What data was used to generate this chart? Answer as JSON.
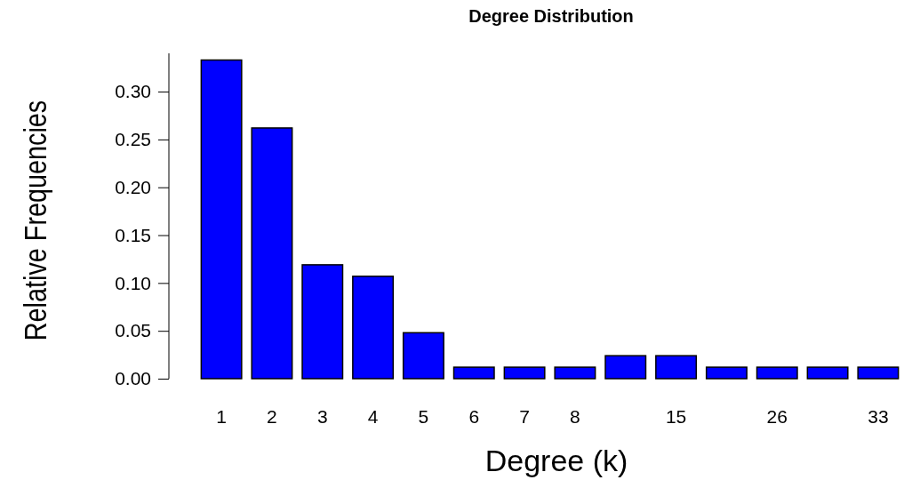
{
  "chart_data": {
    "type": "bar",
    "title": "Degree Distribution",
    "xlabel": "Degree (k)",
    "ylabel": "Relative Frequencies",
    "categories": [
      "1",
      "2",
      "3",
      "4",
      "5",
      "6",
      "7",
      "8",
      null,
      "15",
      null,
      "26",
      null,
      "33"
    ],
    "values": [
      0.333,
      0.262,
      0.119,
      0.107,
      0.048,
      0.012,
      0.012,
      0.012,
      0.024,
      0.024,
      0.012,
      0.012,
      0.012,
      0.012
    ],
    "color": "#0000ff",
    "ylim": [
      0,
      0.34
    ],
    "yticks": [
      {
        "value": 0,
        "label": "0.00"
      },
      {
        "value": 0.05,
        "label": "0.05"
      },
      {
        "value": 0.1,
        "label": "0.10"
      },
      {
        "value": 0.15,
        "label": "0.15"
      },
      {
        "value": 0.2,
        "label": "0.20"
      },
      {
        "value": 0.25,
        "label": "0.25"
      },
      {
        "value": 0.3,
        "label": "0.30"
      }
    ]
  }
}
